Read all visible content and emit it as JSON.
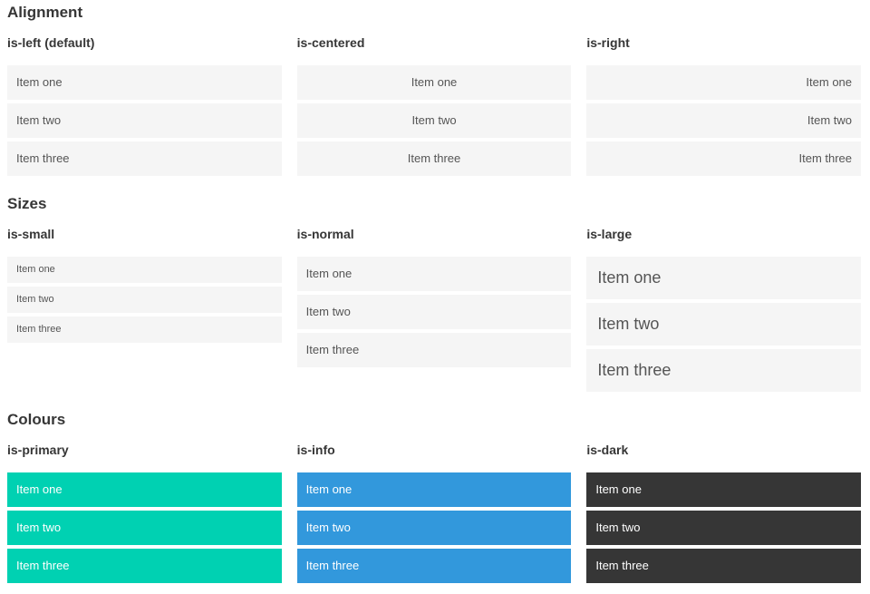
{
  "colors": {
    "primary": "#00d1b2",
    "info": "#3298dc",
    "dark": "#363636",
    "item-bg": "#f5f5f5"
  },
  "sections": [
    {
      "title": "Alignment",
      "columns": [
        {
          "label": "is-left (default)",
          "items": [
            "Item one",
            "Item two",
            "Item three"
          ]
        },
        {
          "label": "is-centered",
          "items": [
            "Item one",
            "Item two",
            "Item three"
          ]
        },
        {
          "label": "is-right",
          "items": [
            "Item one",
            "Item two",
            "Item three"
          ]
        }
      ]
    },
    {
      "title": "Sizes",
      "columns": [
        {
          "label": "is-small",
          "items": [
            "Item one",
            "Item two",
            "Item three"
          ]
        },
        {
          "label": "is-normal",
          "items": [
            "Item one",
            "Item two",
            "Item three"
          ]
        },
        {
          "label": "is-large",
          "items": [
            "Item one",
            "Item two",
            "Item three"
          ]
        }
      ]
    },
    {
      "title": "Colours",
      "columns": [
        {
          "label": "is-primary",
          "items": [
            "Item one",
            "Item two",
            "Item three"
          ]
        },
        {
          "label": "is-info",
          "items": [
            "Item one",
            "Item two",
            "Item three"
          ]
        },
        {
          "label": "is-dark",
          "items": [
            "Item one",
            "Item two",
            "Item three"
          ]
        }
      ]
    }
  ]
}
